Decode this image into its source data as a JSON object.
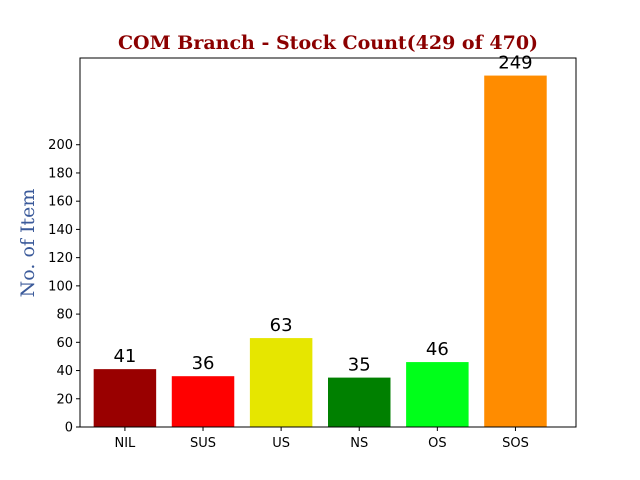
{
  "chart_data": {
    "type": "bar",
    "title": "COM Branch - Stock Count(429 of 470)",
    "ylabel": "No. of Item",
    "xlabel": "",
    "categories": [
      "NIL",
      "SUS",
      "US",
      "NS",
      "OS",
      "SOS"
    ],
    "values": [
      41,
      36,
      63,
      35,
      46,
      249
    ],
    "bar_colors": [
      "#990000",
      "#ff0000",
      "#e6e600",
      "#008000",
      "#00ff1a",
      "#ff8c00"
    ],
    "yticks": [
      0,
      20,
      40,
      60,
      80,
      100,
      120,
      140,
      160,
      180,
      200
    ],
    "ylim": [
      0,
      261.45
    ],
    "grid": false,
    "title_color": "#8b0000",
    "ylabel_color": "#3b5a9a"
  }
}
